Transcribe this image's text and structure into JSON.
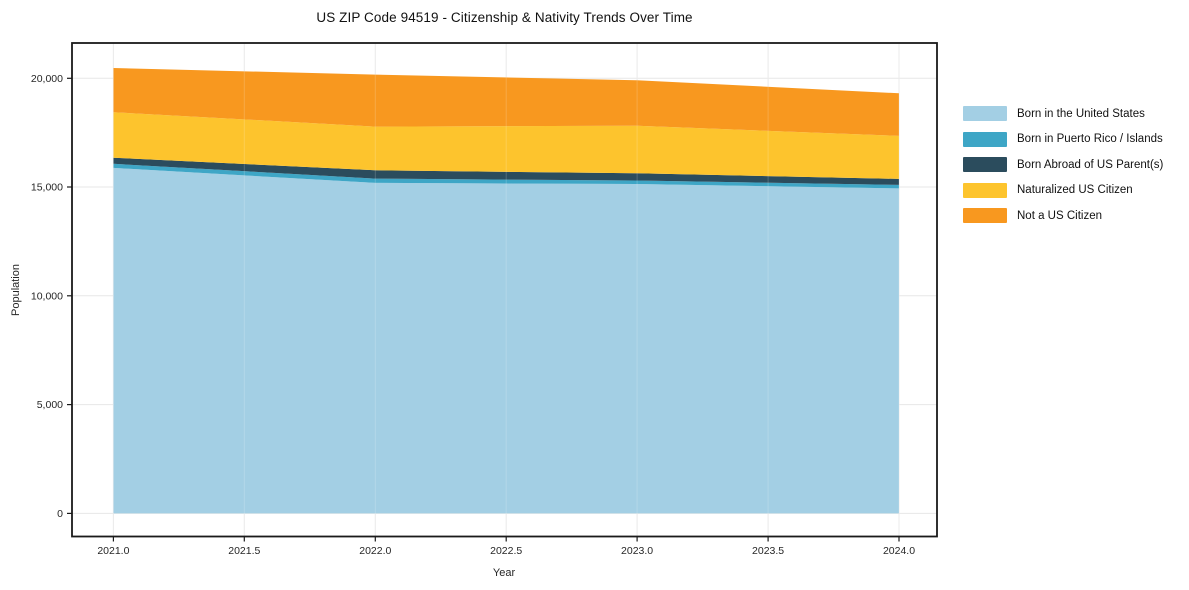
{
  "figure": {
    "title": "US ZIP Code 94519 - Citizenship & Nativity Trends Over Time",
    "xlabel": "Year",
    "ylabel": "Population"
  },
  "axes": {
    "x_tick_values": [
      2021.0,
      2021.5,
      2022.0,
      2022.5,
      2023.0,
      2023.5,
      2024.0
    ],
    "x_tick_labels": [
      "2021.0",
      "2021.5",
      "2022.0",
      "2022.5",
      "2023.0",
      "2023.5",
      "2024.0"
    ],
    "y_tick_values": [
      0,
      5000,
      10000,
      15000,
      20000
    ],
    "y_tick_labels": [
      "0",
      "5,000",
      "10,000",
      "15,000",
      "20,000"
    ]
  },
  "legend": {
    "items": [
      {
        "label": "Born in the United States",
        "color": "#a3cfe4"
      },
      {
        "label": "Born in Puerto Rico / Islands",
        "color": "#3ea6c6"
      },
      {
        "label": "Born Abroad of US Parent(s)",
        "color": "#2b4c5d"
      },
      {
        "label": "Naturalized US Citizen",
        "color": "#fdc42d"
      },
      {
        "label": "Not a US Citizen",
        "color": "#f8981f"
      }
    ]
  },
  "chart_data": {
    "type": "area",
    "stacked": true,
    "title": "US ZIP Code 94519 - Citizenship & Nativity Trends Over Time",
    "xlabel": "Year",
    "ylabel": "Population",
    "x": [
      2021,
      2022,
      2023,
      2024
    ],
    "series": [
      {
        "name": "Born in the United States",
        "color": "#a3cfe4",
        "values": [
          15880,
          15190,
          15140,
          14940
        ]
      },
      {
        "name": "Born in Puerto Rico / Islands",
        "color": "#3ea6c6",
        "values": [
          190,
          200,
          160,
          160
        ]
      },
      {
        "name": "Born Abroad of US Parent(s)",
        "color": "#2b4c5d",
        "values": [
          280,
          380,
          330,
          275
        ]
      },
      {
        "name": "Naturalized US Citizen",
        "color": "#fdc42d",
        "values": [
          2090,
          2010,
          2190,
          1975
        ]
      },
      {
        "name": "Not a US Citizen",
        "color": "#f8981f",
        "values": [
          2030,
          2390,
          2085,
          1960
        ]
      }
    ],
    "totals_by_year": [
      20470,
      20170,
      19905,
      19310
    ],
    "xlim": [
      2020.842,
      2024.145
    ],
    "ylim": [
      -1060,
      21620
    ],
    "grid": true,
    "legend_position": "right-outside",
    "colors": {
      "grid": "#e7e7e7",
      "spine": "#1a1a1a",
      "background": "#ffffff"
    }
  }
}
